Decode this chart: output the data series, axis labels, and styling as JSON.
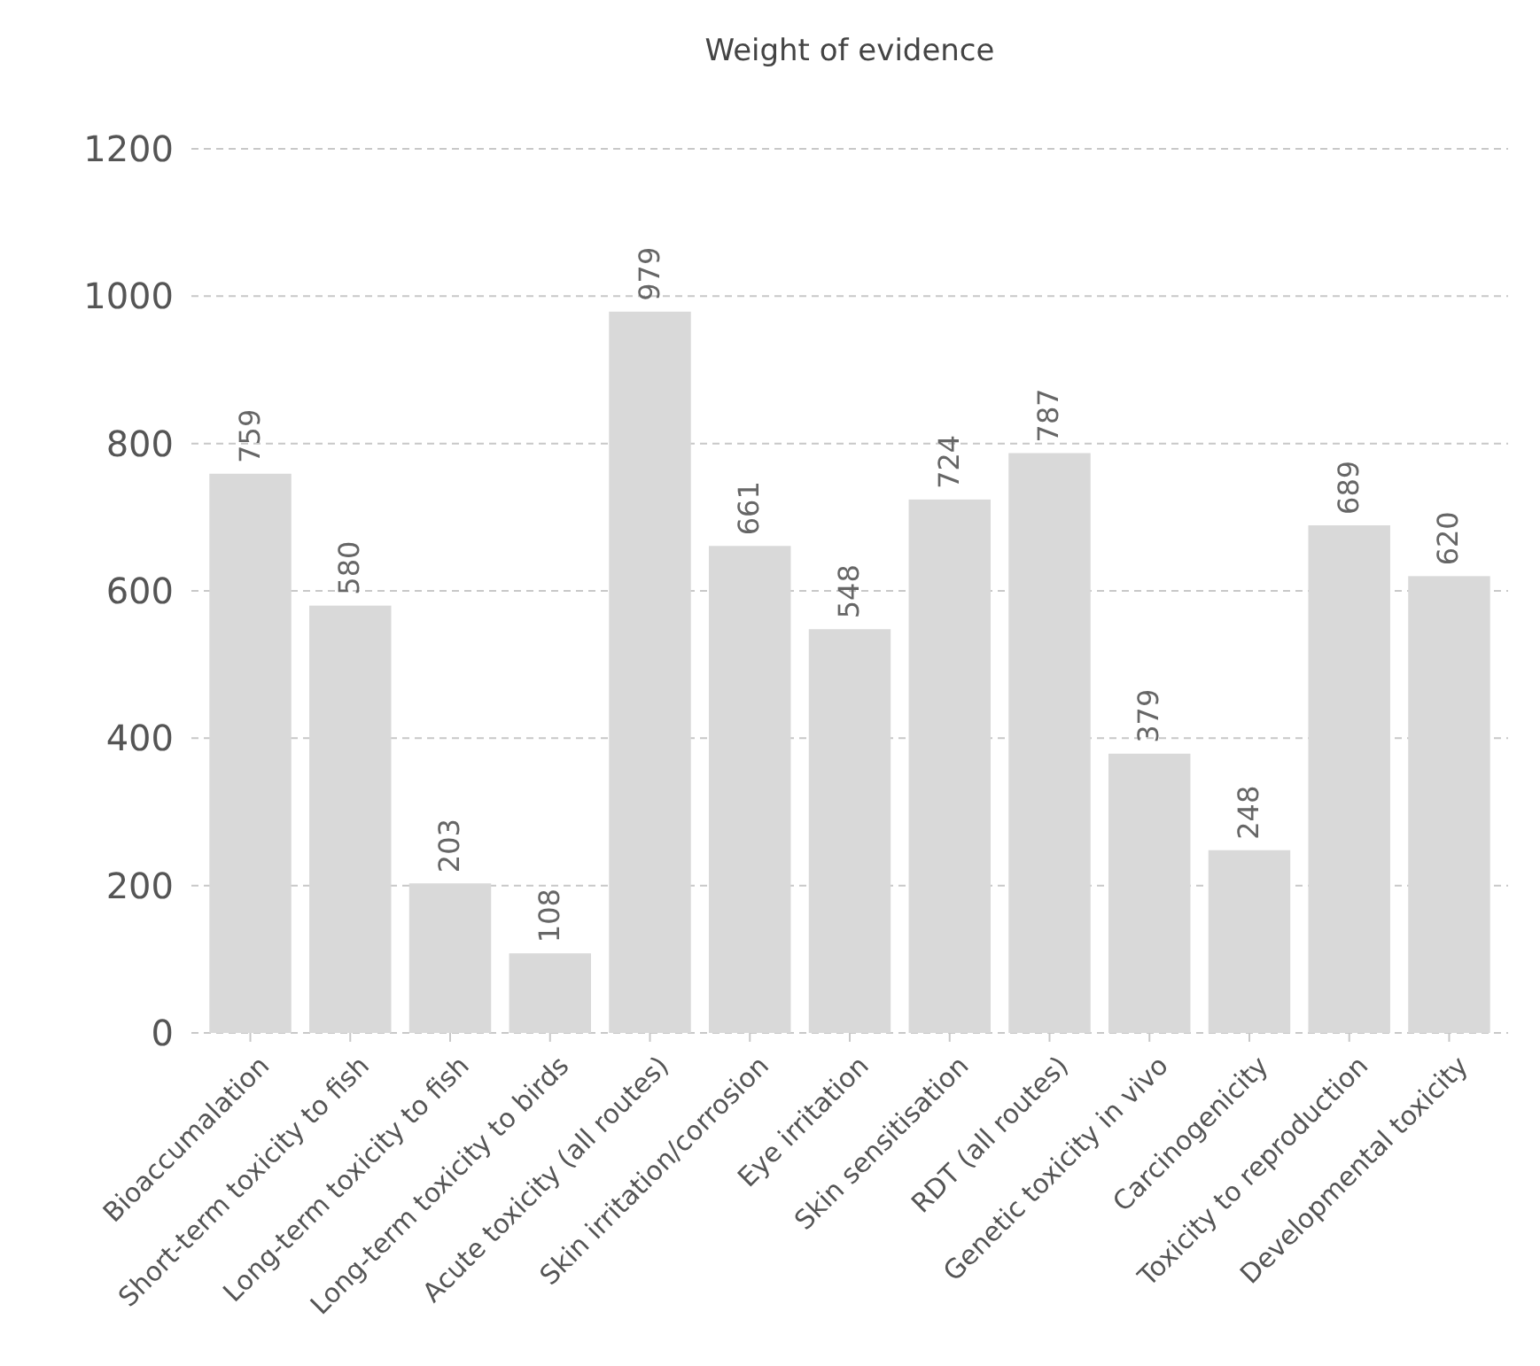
{
  "chart_data": {
    "type": "bar",
    "title": "Weight of evidence",
    "categories": [
      "Bioaccumalation",
      "Short-term toxicity to fish",
      "Long-term toxicity to fish",
      "Long-term toxicity to birds",
      "Acute toxicity (all routes)",
      "Skin irritation/corrosion",
      "Eye irritation",
      "Skin sensitisation",
      "RDT (all routes)",
      "Genetic toxicity in vivo",
      "Carcinogenicity",
      "Toxicity to reproduction",
      "Developmental toxicity"
    ],
    "values": [
      759,
      580,
      203,
      108,
      979,
      661,
      548,
      724,
      787,
      379,
      248,
      689,
      620
    ],
    "color": "#d9d9d9",
    "ylim": [
      0,
      1200
    ],
    "yticks": [
      0,
      200,
      400,
      600,
      800,
      1000,
      1200
    ],
    "grid": "y",
    "data_labels": true
  }
}
